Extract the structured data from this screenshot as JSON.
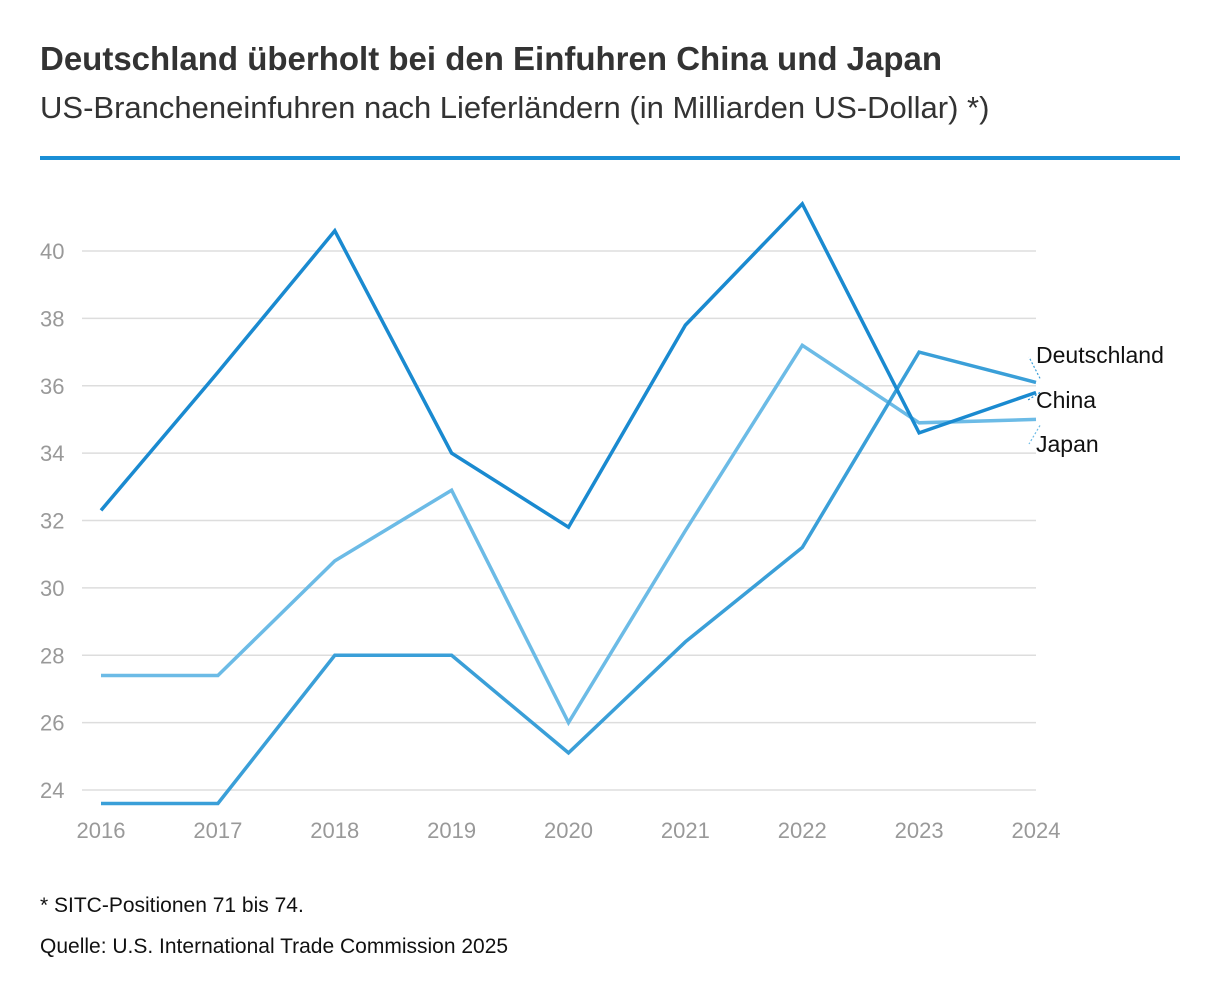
{
  "title": "Deutschland überholt bei den Einfuhren China und Japan",
  "subtitle": "US-Brancheneinfuhren nach Lieferländern (in Milliarden US-Dollar) *)",
  "footnote": "* SITC-Positionen 71 bis 74.",
  "source": "Quelle: U.S. International Trade Commission 2025",
  "colors": {
    "rule": "#1a8fd6",
    "grid": "#dddddd",
    "tick_text": "#999999"
  },
  "chart_data": {
    "type": "line",
    "title": "Deutschland überholt bei den Einfuhren China und Japan",
    "xlabel": "",
    "ylabel": "",
    "ylim": [
      23.5,
      42
    ],
    "yticks": [
      24,
      26,
      28,
      30,
      32,
      34,
      36,
      38,
      40
    ],
    "grid": true,
    "legend_placement": "right",
    "x": [
      "2016",
      "2017",
      "2018",
      "2019",
      "2020",
      "2021",
      "2022",
      "2023",
      "2024"
    ],
    "series": [
      {
        "name": "Deutschland",
        "color": "#3a9fd8",
        "values": [
          23.6,
          23.6,
          28.0,
          28.0,
          25.1,
          28.4,
          31.2,
          37.0,
          36.1
        ]
      },
      {
        "name": "China",
        "color": "#1a8ad0",
        "values": [
          32.3,
          36.4,
          40.6,
          34.0,
          31.8,
          37.8,
          41.4,
          34.6,
          35.8
        ]
      },
      {
        "name": "Japan",
        "color": "#6cbbe6",
        "values": [
          27.4,
          27.4,
          30.8,
          32.9,
          26.0,
          31.7,
          37.2,
          34.9,
          35.0
        ]
      }
    ]
  }
}
